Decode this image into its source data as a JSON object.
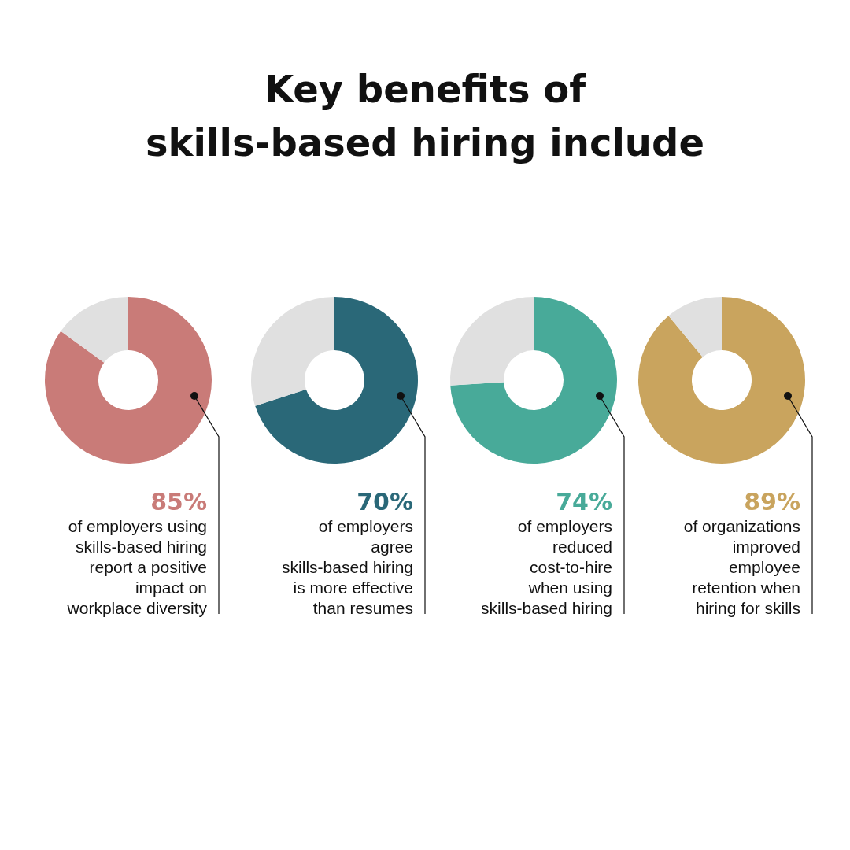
{
  "chart_data": [
    {
      "type": "other",
      "title": "Key benefits of\nskills-based hiring include"
    },
    {
      "type": "donut",
      "categories": [
        null,
        null
      ],
      "values": [
        85,
        15
      ],
      "colors": [
        "#c97b78",
        "#e0e0e0"
      ],
      "value_labels": [
        "85%",
        null
      ],
      "annotations": [
        "of employers using\nskills-based hiring\nreport a positive\nimpact on\nworkplace diversity"
      ]
    },
    {
      "type": "donut",
      "categories": [
        null,
        null
      ],
      "values": [
        70,
        30
      ],
      "colors": [
        "#2a6878",
        "#e0e0e0"
      ],
      "value_labels": [
        "70%",
        null
      ],
      "annotations": [
        "of employers\nagree\nskills-based hiring\nis more effective\nthan resumes"
      ]
    },
    {
      "type": "donut",
      "categories": [
        null,
        null
      ],
      "values": [
        74,
        26
      ],
      "colors": [
        "#48aa99",
        "#e0e0e0"
      ],
      "value_labels": [
        "74%",
        null
      ],
      "annotations": [
        "of employers\nreduced\ncost-to-hire\nwhen using\nskills-based hiring"
      ]
    },
    {
      "type": "donut",
      "categories": [
        null,
        null
      ],
      "values": [
        89,
        11
      ],
      "colors": [
        "#c9a45e",
        "#e0e0e0"
      ],
      "value_labels": [
        "89%",
        null
      ],
      "annotations": [
        "of organizations\nimproved\nemployee\nretention when\nhiring for skills"
      ]
    }
  ]
}
